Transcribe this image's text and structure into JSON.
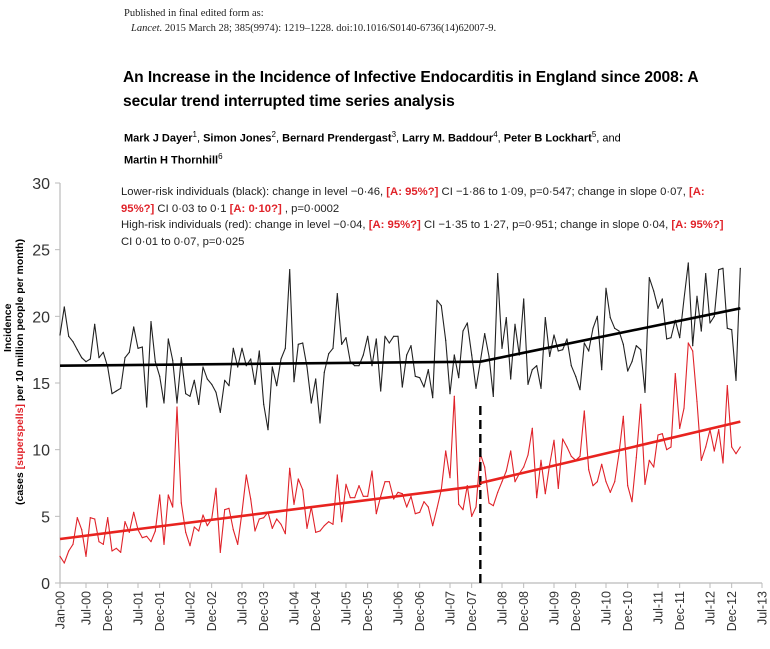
{
  "header": {
    "published_label": "Published in final edited form as:",
    "journal": "Lancet.",
    "citation": " 2015 March 28; 385(9974): 1219–1228. doi:10.1016/S0140-6736(14)62007-9."
  },
  "title": "An Increase in the Incidence of Infective Endocarditis in England since 2008: A secular trend interrupted time series analysis",
  "authors": [
    {
      "name": "Mark J Dayer",
      "sup": "1"
    },
    {
      "name": "Simon Jones",
      "sup": "2"
    },
    {
      "name": "Bernard Prendergast",
      "sup": "3"
    },
    {
      "name": "Larry M. Baddour",
      "sup": "4"
    },
    {
      "name": "Peter B Lockhart",
      "sup": "5"
    },
    {
      "name": "Martin H Thornhill",
      "sup": "6",
      "prefix": "and"
    }
  ],
  "annotation_lines": [
    [
      {
        "t": "Lower-risk individuals (black): change in level −0·46, "
      },
      {
        "t": "[A: 95%?]",
        "red": true
      },
      {
        "t": " CI −1·86 to 1·09, p=0·547; change in slope 0·07, "
      },
      {
        "t": "[A:",
        "red": true
      }
    ],
    [
      {
        "t": "95%?]",
        "red": true
      },
      {
        "t": " CI 0·03 to 0·1 "
      },
      {
        "t": "[A: 0·10?]",
        "red": true
      },
      {
        "t": " , p=0·0002"
      }
    ],
    [
      {
        "t": "High-risk individuals (red): change in level −0·04, "
      },
      {
        "t": "[A: 95%?]",
        "red": true
      },
      {
        "t": " CI −1·35 to 1·27, p=0·951; change in slope 0·04, "
      },
      {
        "t": "[A: 95%?]",
        "red": true
      }
    ],
    [
      {
        "t": "CI 0·01 to 0·07, p=0·025"
      }
    ]
  ],
  "chart_data": {
    "type": "line",
    "ylabel_line1": "Incidence",
    "ylabel_line2_parts": [
      {
        "t": "(cases "
      },
      {
        "t": "[superspells]",
        "red": true
      },
      {
        "t": " per 10 million people per month)"
      }
    ],
    "ylim": [
      0,
      30
    ],
    "yticks": [
      0,
      5,
      10,
      15,
      20,
      25,
      30
    ],
    "xticks": [
      "Jan-00",
      "Jul-00",
      "Dec-00",
      "Jul-01",
      "Dec-01",
      "Jul-02",
      "Dec-02",
      "Jul-03",
      "Dec-03",
      "Jul-04",
      "Dec-04",
      "Jul-05",
      "Dec-05",
      "Jul-06",
      "Dec-06",
      "Jul-07",
      "Dec-07",
      "Jul-08",
      "Dec-08",
      "Jul-09",
      "Dec-09",
      "Jul-10",
      "Dec-10",
      "Jul-11",
      "Dec-11",
      "Jul-12",
      "Dec-12",
      "Jul-13"
    ],
    "xlim": [
      "Jan-00",
      "Jul-13"
    ],
    "grid": false,
    "intervention": "Feb-08",
    "x": [
      "Jan-00",
      "Feb-00",
      "Mar-00",
      "Apr-00",
      "May-00",
      "Jun-00",
      "Jul-00",
      "Aug-00",
      "Sep-00",
      "Oct-00",
      "Nov-00",
      "Dec-00",
      "Jan-01",
      "Feb-01",
      "Mar-01",
      "Apr-01",
      "May-01",
      "Jun-01",
      "Jul-01",
      "Aug-01",
      "Sep-01",
      "Oct-01",
      "Nov-01",
      "Dec-01",
      "Jan-02",
      "Feb-02",
      "Mar-02",
      "Apr-02",
      "May-02",
      "Jun-02",
      "Jul-02",
      "Aug-02",
      "Sep-02",
      "Oct-02",
      "Nov-02",
      "Dec-02",
      "Jan-03",
      "Feb-03",
      "Mar-03",
      "Apr-03",
      "May-03",
      "Jun-03",
      "Jul-03",
      "Aug-03",
      "Sep-03",
      "Oct-03",
      "Nov-03",
      "Dec-03",
      "Jan-04",
      "Feb-04",
      "Mar-04",
      "Apr-04",
      "May-04",
      "Jun-04",
      "Jul-04",
      "Aug-04",
      "Sep-04",
      "Oct-04",
      "Nov-04",
      "Dec-04",
      "Jan-05",
      "Feb-05",
      "Mar-05",
      "Apr-05",
      "May-05",
      "Jun-05",
      "Jul-05",
      "Aug-05",
      "Sep-05",
      "Oct-05",
      "Nov-05",
      "Dec-05",
      "Jan-06",
      "Feb-06",
      "Mar-06",
      "Apr-06",
      "May-06",
      "Jun-06",
      "Jul-06",
      "Aug-06",
      "Sep-06",
      "Oct-06",
      "Nov-06",
      "Dec-06",
      "Jan-07",
      "Feb-07",
      "Mar-07",
      "Apr-07",
      "May-07",
      "Jun-07",
      "Jul-07",
      "Aug-07",
      "Sep-07",
      "Oct-07",
      "Nov-07",
      "Dec-07",
      "Jan-08",
      "Feb-08",
      "Mar-08",
      "Apr-08",
      "May-08",
      "Jun-08",
      "Jul-08",
      "Aug-08",
      "Sep-08",
      "Oct-08",
      "Nov-08",
      "Dec-08",
      "Jan-09",
      "Feb-09",
      "Mar-09",
      "Apr-09",
      "May-09",
      "Jun-09",
      "Jul-09",
      "Aug-09",
      "Sep-09",
      "Oct-09",
      "Nov-09",
      "Dec-09",
      "Jan-10",
      "Feb-10",
      "Mar-10",
      "Apr-10",
      "May-10",
      "Jun-10",
      "Jul-10",
      "Aug-10",
      "Sep-10",
      "Oct-10",
      "Nov-10",
      "Dec-10",
      "Jan-11",
      "Feb-11",
      "Mar-11",
      "Apr-11",
      "May-11",
      "Jun-11",
      "Jul-11",
      "Aug-11",
      "Sep-11",
      "Oct-11",
      "Nov-11",
      "Dec-11",
      "Jan-12",
      "Feb-12",
      "Mar-12",
      "Apr-12",
      "May-12",
      "Jun-12",
      "Jul-12",
      "Aug-12",
      "Sep-12",
      "Oct-12",
      "Nov-12",
      "Dec-12",
      "Jan-13",
      "Feb-13"
    ],
    "series": [
      {
        "group": "lower-risk",
        "color": "#222222",
        "values": [
          18.6,
          20.7,
          18.5,
          18.1,
          17.5,
          16.9,
          16.6,
          16.8,
          19.4,
          16.9,
          17.3,
          16.2,
          14.2,
          14.4,
          14.6,
          16.9,
          17.3,
          19.2,
          17.6,
          17.7,
          13.2,
          19.6,
          16.6,
          15.5,
          13.5,
          18.3,
          16.7,
          13.5,
          16.9,
          14.2,
          14.0,
          15.2,
          13.4,
          16.2,
          15.3,
          14.9,
          14.3,
          12.8,
          15.2,
          14.8,
          17.6,
          16.2,
          17.6,
          16.3,
          16.8,
          14.9,
          17.4,
          13.4,
          11.5,
          16.2,
          14.8,
          16.8,
          17.6,
          23.5,
          15.1,
          17.9,
          18.0,
          16.2,
          13.5,
          15.3,
          12.0,
          15.8,
          17.2,
          17.6,
          21.7,
          17.9,
          18.4,
          16.6,
          16.3,
          16.3,
          17.1,
          18.5,
          16.3,
          18.3,
          14.4,
          18.5,
          18.0,
          18.5,
          18.5,
          14.7,
          17.1,
          17.8,
          15.5,
          15.4,
          14.7,
          16.0,
          13.9,
          21.2,
          20.8,
          18.2,
          14.2,
          17.1,
          15.4,
          18.9,
          19.5,
          17.1,
          14.6,
          16.6,
          18.7,
          17.0,
          14.0,
          23.2,
          17.6,
          19.9,
          15.3,
          19.4,
          17.1,
          21.3,
          14.9,
          16.0,
          16.3,
          14.6,
          19.9,
          17.0,
          18.6,
          17.4,
          17.5,
          18.3,
          16.3,
          15.5,
          14.5,
          18.0,
          17.4,
          19.1,
          20.0,
          16.0,
          22.1,
          19.9,
          19.1,
          18.9,
          17.9,
          15.9,
          16.6,
          17.8,
          17.5,
          14.3,
          22.9,
          21.9,
          20.6,
          21.3,
          18.3,
          18.4,
          19.7,
          18.4,
          21.3,
          24.0,
          17.8,
          21.5,
          18.9,
          23.2,
          19.5,
          20.0,
          23.5,
          23.6,
          19.1,
          19.0,
          15.2,
          23.6
        ],
        "trend": [
          {
            "from": [
              "Jan-00",
              16.3
            ],
            "to": [
              "Feb-08",
              16.6
            ]
          },
          {
            "from": [
              "Feb-08",
              16.6
            ],
            "to": [
              "Feb-13",
              20.6
            ]
          }
        ]
      },
      {
        "group": "high-risk",
        "color": "#e0232a",
        "values": [
          2.0,
          1.5,
          2.4,
          2.9,
          4.9,
          4.0,
          2.0,
          4.9,
          4.8,
          3.1,
          2.9,
          4.9,
          2.4,
          2.6,
          2.3,
          4.6,
          3.8,
          5.3,
          4.0,
          3.4,
          3.5,
          3.1,
          3.9,
          6.6,
          2.9,
          6.6,
          5.7,
          13.2,
          6.0,
          3.8,
          2.8,
          4.2,
          3.9,
          5.1,
          4.3,
          4.8,
          7.1,
          2.3,
          5.5,
          5.6,
          4.0,
          2.9,
          5.3,
          8.1,
          6.3,
          3.9,
          4.8,
          4.9,
          5.3,
          4.1,
          4.8,
          4.4,
          3.7,
          8.6,
          5.9,
          7.8,
          7.0,
          4.1,
          5.7,
          3.8,
          3.9,
          4.3,
          4.6,
          4.4,
          8.1,
          4.6,
          7.4,
          6.4,
          6.4,
          7.3,
          6.5,
          6.5,
          8.4,
          5.2,
          6.5,
          7.6,
          7.6,
          6.3,
          6.8,
          6.7,
          5.7,
          6.5,
          5.2,
          5.3,
          6.1,
          5.7,
          4.3,
          5.6,
          7.0,
          9.9,
          7.9,
          14.0,
          5.9,
          5.5,
          7.3,
          5.0,
          5.7,
          9.7,
          8.7,
          6.0,
          5.8,
          6.8,
          7.6,
          8.4,
          9.9,
          7.6,
          8.2,
          8.7,
          9.6,
          11.6,
          6.4,
          9.2,
          6.7,
          8.9,
          10.7,
          7.1,
          10.8,
          10.2,
          9.5,
          9.2,
          9.5,
          12.9,
          8.5,
          7.3,
          7.6,
          8.9,
          7.6,
          6.8,
          7.6,
          9.7,
          12.5,
          7.3,
          6.1,
          9.4,
          13.4,
          7.4,
          9.2,
          8.7,
          11.1,
          11.2,
          10.0,
          10.2,
          15.7,
          11.6,
          13.1,
          18.0,
          17.4,
          13.6,
          9.2,
          10.2,
          11.5,
          9.9,
          11.5,
          9.0,
          14.8,
          10.2,
          9.7,
          10.2
        ],
        "trend": [
          {
            "from": [
              "Jan-00",
              3.3
            ],
            "to": [
              "Feb-08",
              7.3
            ]
          },
          {
            "from": [
              "Feb-08",
              7.5
            ],
            "to": [
              "Feb-13",
              12.1
            ]
          }
        ]
      }
    ]
  }
}
